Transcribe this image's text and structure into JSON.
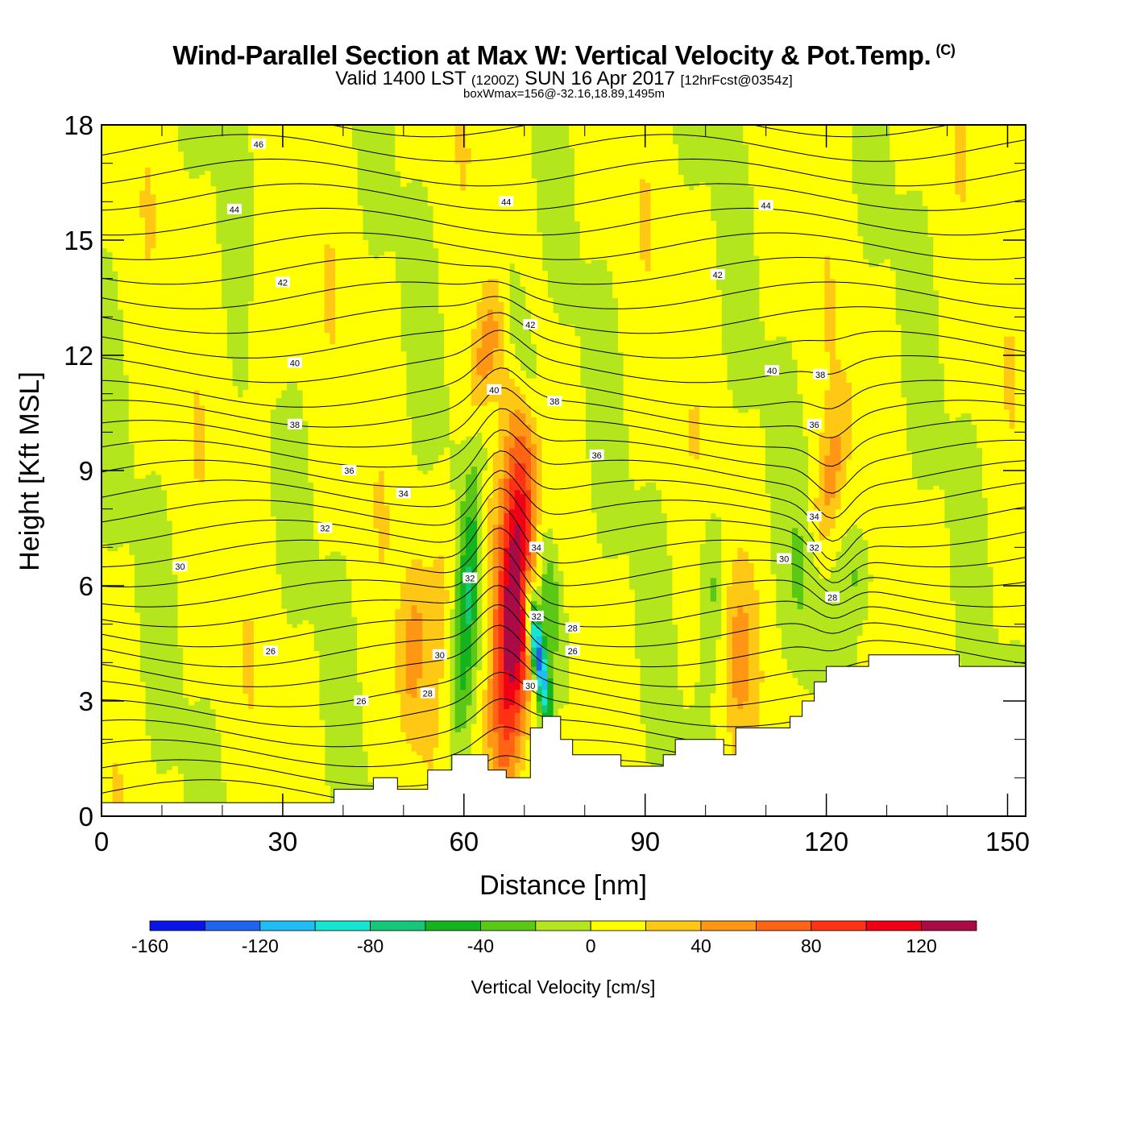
{
  "header": {
    "title": "Wind-Parallel Section at Max W: Vertical Velocity & Pot.Temp.",
    "copyright": "(C)",
    "valid_prefix": "Valid 1400 LST",
    "valid_utc": "(1200Z)",
    "valid_date": "SUN 16 Apr 2017",
    "forecast_info": "[12hrFcst@0354z]",
    "box_info": "boxWmax=156@-32.16,18.89,1495m"
  },
  "chart_data": {
    "type": "heatmap",
    "xlabel": "Distance [nm]",
    "ylabel": "Height [Kft MSL]",
    "xlim": [
      0,
      153
    ],
    "ylim": [
      0,
      18
    ],
    "x_ticks": [
      "0",
      "30",
      "60",
      "90",
      "120",
      "150"
    ],
    "y_ticks": [
      "0",
      "3",
      "6",
      "9",
      "12",
      "15",
      "18"
    ],
    "colorbar": {
      "label": "Vertical Velocity [cm/s]",
      "tick_labels": [
        "-160",
        "-120",
        "-80",
        "-40",
        "0",
        "40",
        "80",
        "120"
      ],
      "levels": [
        -160,
        -140,
        -120,
        -100,
        -80,
        -60,
        -40,
        -20,
        0,
        20,
        40,
        60,
        80,
        100,
        120,
        140
      ],
      "colors": [
        "#0a14e6",
        "#1e64f0",
        "#1ebef5",
        "#14e6d2",
        "#14c878",
        "#14b41e",
        "#5ac814",
        "#b4e61e",
        "#ffff00",
        "#ffc814",
        "#ff9614",
        "#ff6414",
        "#ff3214",
        "#f00014",
        "#aa0a46"
      ]
    },
    "background_value_color": "#b4e61e",
    "velocity_features": [
      {
        "x": 68.5,
        "y": 5.5,
        "sx": 2.3,
        "sy": 3.2,
        "tilt": 0.12,
        "amp": 150
      },
      {
        "x": 63.5,
        "y": 7.4,
        "sx": 1.4,
        "sy": 1.5,
        "tilt": 0.0,
        "amp": 25
      },
      {
        "x": 72.2,
        "y": 4.3,
        "sx": 0.9,
        "sy": 1.3,
        "tilt": -0.3,
        "amp": -150
      },
      {
        "x": 74.0,
        "y": 5.9,
        "sx": 1.8,
        "sy": 1.9,
        "tilt": -0.3,
        "amp": -55
      },
      {
        "x": 60.5,
        "y": 5.5,
        "sx": 1.4,
        "sy": 2.7,
        "tilt": 0.15,
        "amp": -60
      },
      {
        "x": 56.5,
        "y": 5.8,
        "sx": 1.5,
        "sy": 1.5,
        "tilt": 0.0,
        "amp": 18
      },
      {
        "x": 51.5,
        "y": 4.3,
        "sx": 1.5,
        "sy": 1.5,
        "tilt": 0.1,
        "amp": 38
      },
      {
        "x": 63.5,
        "y": 12.0,
        "sx": 1.6,
        "sy": 1.3,
        "tilt": 0.3,
        "amp": 45
      },
      {
        "x": 70.0,
        "y": 12.0,
        "sx": 1.8,
        "sy": 1.9,
        "tilt": -0.35,
        "amp": -45
      },
      {
        "x": 105.5,
        "y": 4.2,
        "sx": 2.0,
        "sy": 1.5,
        "tilt": 0.0,
        "amp": 32
      },
      {
        "x": 101.0,
        "y": 6.0,
        "sx": 1.6,
        "sy": 1.5,
        "tilt": 0.0,
        "amp": -35
      },
      {
        "x": 120.5,
        "y": 8.7,
        "sx": 1.6,
        "sy": 1.4,
        "tilt": 0.3,
        "amp": 40
      },
      {
        "x": 125.5,
        "y": 6.3,
        "sx": 1.8,
        "sy": 0.9,
        "tilt": 0.0,
        "amp": -30
      },
      {
        "x": 116.0,
        "y": 6.2,
        "sx": 2.0,
        "sy": 1.6,
        "tilt": 0.0,
        "amp": -22
      },
      {
        "x": 29.0,
        "y": 13.0,
        "sx": 3.0,
        "sy": 1.3,
        "tilt": 0.0,
        "amp": 16
      }
    ],
    "terrain_top_kft": [
      [
        0,
        0.35
      ],
      [
        38.5,
        0.35
      ],
      [
        38.5,
        0.7
      ],
      [
        45,
        0.7
      ],
      [
        45,
        1.0
      ],
      [
        49,
        1.0
      ],
      [
        49,
        0.7
      ],
      [
        54,
        0.7
      ],
      [
        54,
        1.2
      ],
      [
        58,
        1.2
      ],
      [
        58,
        1.6
      ],
      [
        64,
        1.6
      ],
      [
        64,
        1.2
      ],
      [
        67,
        1.2
      ],
      [
        67,
        1.0
      ],
      [
        71,
        1.0
      ],
      [
        71,
        2.3
      ],
      [
        73,
        2.3
      ],
      [
        73,
        2.6
      ],
      [
        76,
        2.6
      ],
      [
        76,
        2.0
      ],
      [
        78,
        2.0
      ],
      [
        78,
        1.6
      ],
      [
        86,
        1.6
      ],
      [
        86,
        1.3
      ],
      [
        93,
        1.3
      ],
      [
        93,
        1.6
      ],
      [
        95,
        1.6
      ],
      [
        95,
        2.0
      ],
      [
        103,
        2.0
      ],
      [
        103,
        1.6
      ],
      [
        105,
        1.6
      ],
      [
        105,
        2.3
      ],
      [
        114,
        2.3
      ],
      [
        114,
        2.6
      ],
      [
        116,
        2.6
      ],
      [
        116,
        3.0
      ],
      [
        118,
        3.0
      ],
      [
        118,
        3.5
      ],
      [
        120,
        3.5
      ],
      [
        120,
        3.9
      ],
      [
        127,
        3.9
      ],
      [
        127,
        4.2
      ],
      [
        142,
        4.2
      ],
      [
        142,
        3.9
      ],
      [
        153,
        3.9
      ]
    ],
    "isentrope_labels": [
      {
        "text": "46",
        "x": 26,
        "y": 17.5
      },
      {
        "text": "44",
        "x": 22,
        "y": 15.8
      },
      {
        "text": "44",
        "x": 67,
        "y": 16.0
      },
      {
        "text": "44",
        "x": 110,
        "y": 15.9
      },
      {
        "text": "42",
        "x": 30,
        "y": 13.9
      },
      {
        "text": "42",
        "x": 102,
        "y": 14.1
      },
      {
        "text": "42",
        "x": 71,
        "y": 12.8
      },
      {
        "text": "40",
        "x": 32,
        "y": 11.8
      },
      {
        "text": "40",
        "x": 65,
        "y": 11.1
      },
      {
        "text": "40",
        "x": 111,
        "y": 11.6
      },
      {
        "text": "38",
        "x": 32,
        "y": 10.2
      },
      {
        "text": "38",
        "x": 75,
        "y": 10.8
      },
      {
        "text": "38",
        "x": 119,
        "y": 11.5
      },
      {
        "text": "36",
        "x": 41,
        "y": 9.0
      },
      {
        "text": "36",
        "x": 82,
        "y": 9.4
      },
      {
        "text": "36",
        "x": 118,
        "y": 10.2
      },
      {
        "text": "34",
        "x": 50,
        "y": 8.4
      },
      {
        "text": "34",
        "x": 72,
        "y": 7.0
      },
      {
        "text": "34",
        "x": 118,
        "y": 7.8
      },
      {
        "text": "32",
        "x": 37,
        "y": 7.5
      },
      {
        "text": "32",
        "x": 61,
        "y": 6.2
      },
      {
        "text": "32",
        "x": 72,
        "y": 5.2
      },
      {
        "text": "32",
        "x": 118,
        "y": 7.0
      },
      {
        "text": "30",
        "x": 13,
        "y": 6.5
      },
      {
        "text": "30",
        "x": 56,
        "y": 4.2
      },
      {
        "text": "30",
        "x": 71,
        "y": 3.4
      },
      {
        "text": "30",
        "x": 113,
        "y": 6.7
      },
      {
        "text": "28",
        "x": 78,
        "y": 4.9
      },
      {
        "text": "28",
        "x": 54,
        "y": 3.2
      },
      {
        "text": "28",
        "x": 121,
        "y": 5.7
      },
      {
        "text": "26",
        "x": 28,
        "y": 4.3
      },
      {
        "text": "26",
        "x": 43,
        "y": 3.0
      },
      {
        "text": "26",
        "x": 78,
        "y": 4.3
      }
    ]
  }
}
